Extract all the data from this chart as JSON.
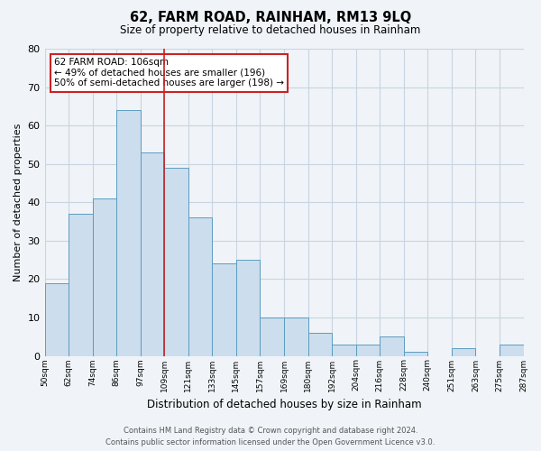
{
  "title": "62, FARM ROAD, RAINHAM, RM13 9LQ",
  "subtitle": "Size of property relative to detached houses in Rainham",
  "xlabel": "Distribution of detached houses by size in Rainham",
  "ylabel": "Number of detached properties",
  "bin_labels": [
    "50sqm",
    "62sqm",
    "74sqm",
    "86sqm",
    "97sqm",
    "109sqm",
    "121sqm",
    "133sqm",
    "145sqm",
    "157sqm",
    "169sqm",
    "180sqm",
    "192sqm",
    "204sqm",
    "216sqm",
    "228sqm",
    "240sqm",
    "251sqm",
    "263sqm",
    "275sqm",
    "287sqm"
  ],
  "values": [
    19,
    37,
    41,
    64,
    53,
    49,
    36,
    24,
    25,
    10,
    10,
    6,
    3,
    3,
    5,
    1,
    0,
    2,
    0,
    3
  ],
  "bar_color": "#ccdded",
  "bar_edge_color": "#5b9dc0",
  "vline_color": "#cc2222",
  "annotation_text": "62 FARM ROAD: 106sqm\n← 49% of detached houses are smaller (196)\n50% of semi-detached houses are larger (198) →",
  "annotation_box_color": "white",
  "annotation_box_edge": "#cc2222",
  "ylim": [
    0,
    80
  ],
  "yticks": [
    0,
    10,
    20,
    30,
    40,
    50,
    60,
    70,
    80
  ],
  "footer_line1": "Contains HM Land Registry data © Crown copyright and database right 2024.",
  "footer_line2": "Contains public sector information licensed under the Open Government Licence v3.0.",
  "bg_color": "#f0f4f8",
  "grid_color": "#c8d4e0",
  "vline_bar_index": 4
}
